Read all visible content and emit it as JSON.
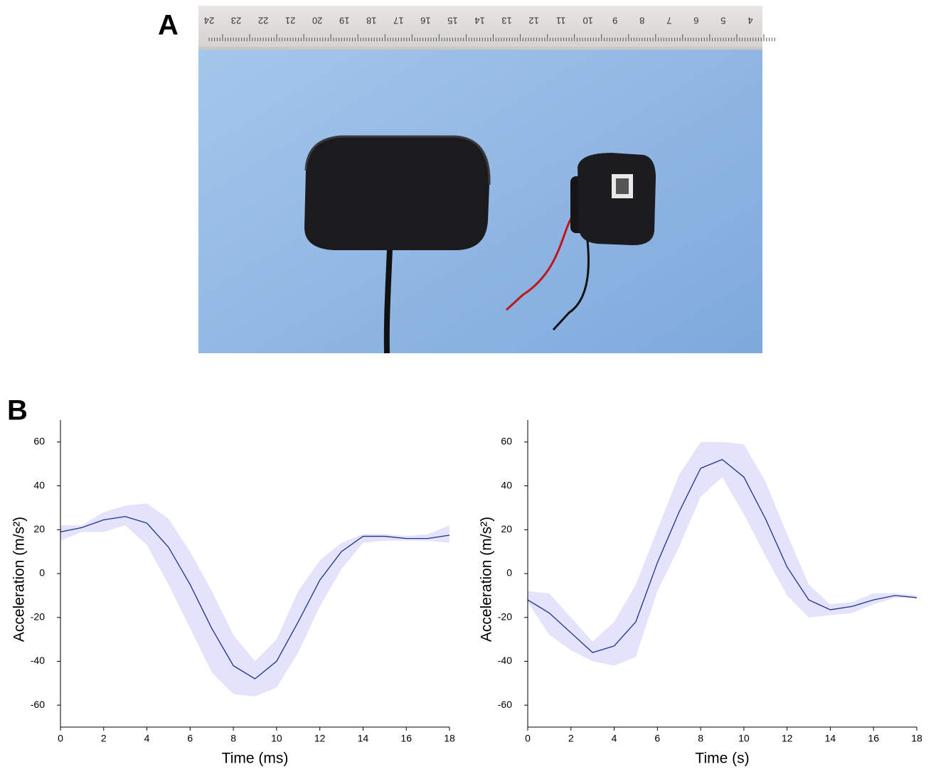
{
  "panels": {
    "a": "A",
    "b": "B"
  },
  "photo": {
    "ruler_labels": [
      "24",
      "23",
      "22",
      "21",
      "20",
      "19",
      "18",
      "17",
      "16",
      "15",
      "14",
      "13",
      "12",
      "11",
      "10",
      "9",
      "8",
      "7",
      "6",
      "5",
      "4"
    ]
  },
  "chart_data": [
    {
      "type": "line",
      "xlabel": "Time (ms)",
      "ylabel": "Acceleration (m/s²)",
      "x": [
        0,
        1,
        2,
        3,
        4,
        5,
        6,
        7,
        8,
        9,
        10,
        11,
        12,
        13,
        14,
        15,
        16,
        17,
        18
      ],
      "series": [
        {
          "color": "#1f2f8f",
          "band_color": "#e3e3fb",
          "values": [
            19,
            21,
            24.5,
            26,
            23,
            12,
            -5,
            -25,
            -42,
            -48,
            -40,
            -22,
            -3,
            10,
            17,
            17,
            16,
            16,
            17.5
          ],
          "upper": [
            22,
            22,
            28,
            31,
            32,
            25,
            10,
            -8,
            -28,
            -40,
            -30,
            -8,
            6,
            14,
            18,
            18,
            17,
            18,
            22
          ],
          "lower": [
            15,
            19,
            19,
            22,
            13,
            -5,
            -25,
            -45,
            -55,
            -56,
            -52,
            -36,
            -15,
            2,
            14,
            15,
            15,
            15,
            14
          ]
        }
      ],
      "xlim": [
        0,
        18
      ],
      "xticks": [
        0,
        2,
        4,
        6,
        8,
        10,
        12,
        14,
        16,
        18
      ],
      "ylim": [
        -70,
        70
      ],
      "yticks": [
        -60,
        -40,
        -20,
        0,
        20,
        40,
        60
      ]
    },
    {
      "type": "line",
      "xlabel": "Time (s)",
      "ylabel": "Acceleration (m/s²)",
      "x": [
        0,
        1,
        2,
        3,
        4,
        5,
        6,
        7,
        8,
        9,
        10,
        11,
        12,
        13,
        14,
        15,
        16,
        17,
        18
      ],
      "series": [
        {
          "color": "#1f2f8f",
          "band_color": "#e3e3fb",
          "values": [
            -12,
            -18,
            -27,
            -36,
            -33,
            -22,
            5,
            28,
            48,
            52,
            44,
            25,
            3,
            -12,
            -16.5,
            -15,
            -12,
            -10,
            -11
          ],
          "upper": [
            -8,
            -9,
            -20,
            -31,
            -22,
            -5,
            20,
            45,
            60,
            60,
            59,
            42,
            18,
            -5,
            -14,
            -13,
            -9,
            -9,
            -10
          ],
          "lower": [
            -13,
            -28,
            -35,
            -40,
            -42,
            -38,
            -8,
            12,
            35,
            44,
            27,
            8,
            -10,
            -20,
            -19,
            -18,
            -14,
            -11,
            -11
          ]
        }
      ],
      "xlim": [
        0,
        18
      ],
      "xticks": [
        0,
        2,
        4,
        6,
        8,
        10,
        12,
        14,
        16,
        18
      ],
      "ylim": [
        -70,
        70
      ],
      "yticks": [
        -60,
        -40,
        -20,
        0,
        20,
        40,
        60
      ]
    }
  ]
}
